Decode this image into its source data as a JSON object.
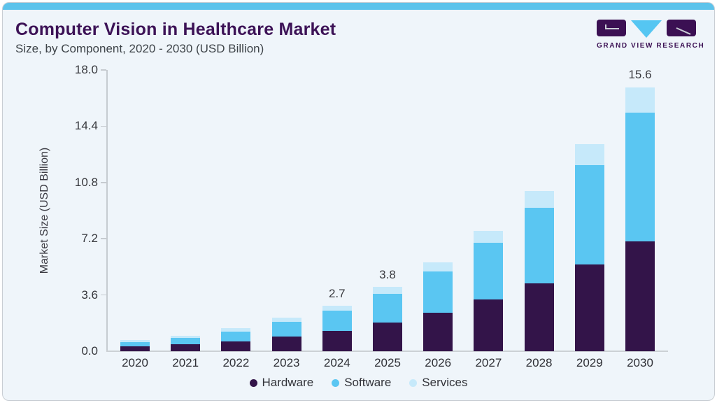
{
  "header": {
    "title": "Computer Vision in Healthcare Market",
    "subtitle": "Size, by Component, 2020 - 2030 (USD Billion)"
  },
  "logo": {
    "brand": "GRAND VIEW RESEARCH",
    "icons": [
      "g-block-icon",
      "v-triangle-icon",
      "r-block-icon"
    ]
  },
  "colors": {
    "accent_strip": "#5cc3eb",
    "hardware": "#331449",
    "software": "#5ac6f2",
    "services": "#c6e9fa",
    "title": "#3c1256",
    "brand": "#3b1053",
    "card_bg": "#eff5fa"
  },
  "chart_data": {
    "type": "bar",
    "stacked": true,
    "title": "Computer Vision in Healthcare Market Size, by Component, 2020 - 2030 (USD Billion)",
    "xlabel": "",
    "ylabel": "Market Size (USD Billion)",
    "ylim": [
      0,
      18
    ],
    "ytick_labels": [
      "0.0",
      "3.6",
      "7.2",
      "10.8",
      "14.4",
      "18.0"
    ],
    "grid": false,
    "legend_position": "bottom",
    "categories": [
      "2020",
      "2021",
      "2022",
      "2023",
      "2024",
      "2025",
      "2026",
      "2027",
      "2028",
      "2029",
      "2030"
    ],
    "series": [
      {
        "name": "Hardware",
        "color": "#331449",
        "values": [
          0.28,
          0.41,
          0.59,
          0.85,
          1.2,
          1.7,
          2.28,
          3.05,
          4.0,
          5.13,
          6.5
        ]
      },
      {
        "name": "Software",
        "color": "#5ac6f2",
        "values": [
          0.25,
          0.38,
          0.58,
          0.87,
          1.2,
          1.68,
          2.44,
          3.37,
          4.48,
          5.87,
          7.58
        ]
      },
      {
        "name": "Services",
        "color": "#c6e9fa",
        "values": [
          0.12,
          0.13,
          0.18,
          0.25,
          0.3,
          0.42,
          0.55,
          0.7,
          0.97,
          1.24,
          1.52
        ]
      }
    ],
    "totals_estimated": [
      0.65,
      0.92,
      1.35,
      1.97,
      2.7,
      3.8,
      5.27,
      7.12,
      9.45,
      12.24,
      15.6
    ],
    "annotations": [
      {
        "category": "2024",
        "text": "2.7"
      },
      {
        "category": "2025",
        "text": "3.8"
      },
      {
        "category": "2030",
        "text": "15.6"
      }
    ]
  }
}
